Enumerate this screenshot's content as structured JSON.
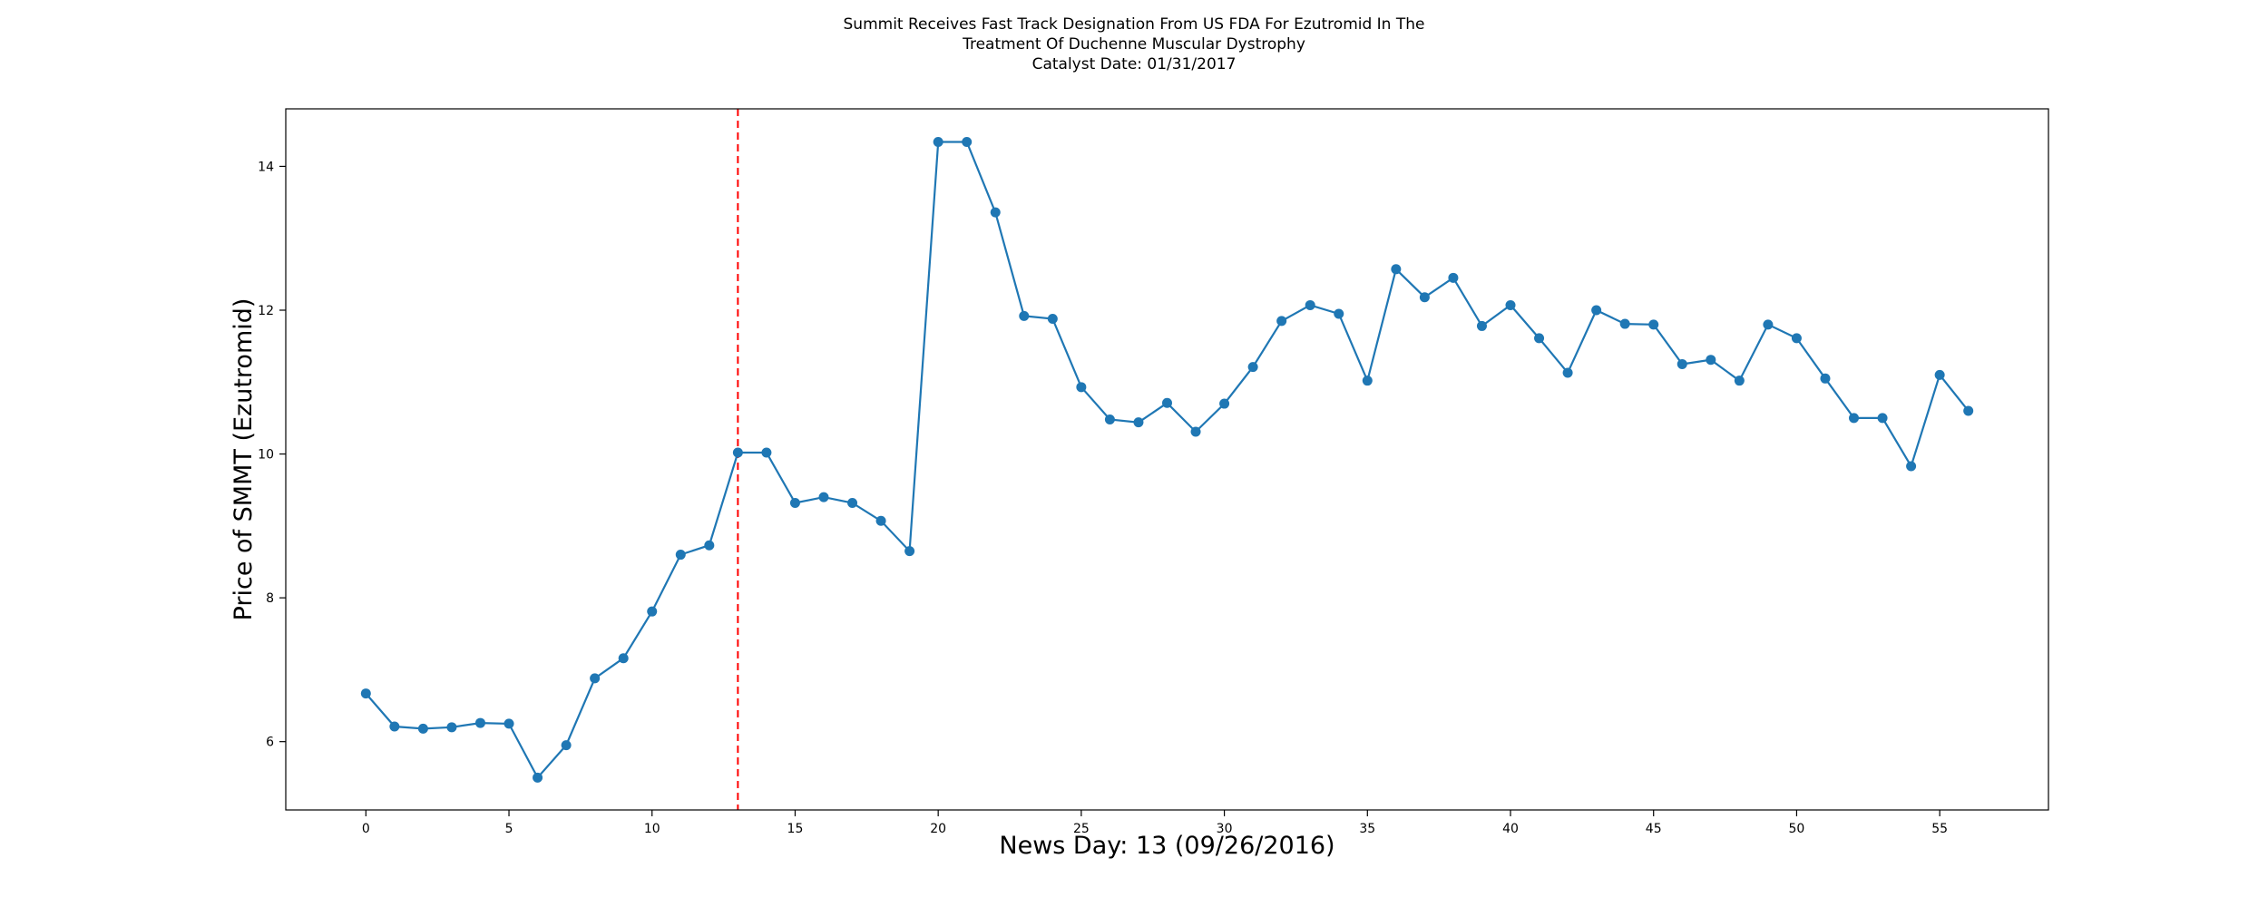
{
  "chart_data": {
    "type": "line",
    "title_lines": [
      "Summit Receives Fast Track Designation From US FDA For Ezutromid In The",
      "Treatment Of Duchenne Muscular Dystrophy",
      "Catalyst Date: 01/31/2017"
    ],
    "xlabel": "News Day: 13 (09/26/2016)",
    "ylabel": "Price of SMMT (Ezutromid)",
    "xlim": [
      -2.8,
      58.8
    ],
    "ylim": [
      5.05,
      14.8
    ],
    "xticks": [
      0,
      5,
      10,
      15,
      20,
      25,
      30,
      35,
      40,
      45,
      50,
      55
    ],
    "yticks": [
      6,
      8,
      10,
      12,
      14
    ],
    "event_line_x": 13,
    "grid": false,
    "colors": {
      "series": "#1f77b4",
      "event_line": "#ff0000"
    },
    "series": [
      {
        "x": [
          0,
          1,
          2,
          3,
          4,
          5,
          6,
          7,
          8,
          9,
          10,
          11,
          12,
          13,
          14,
          15,
          16,
          17,
          18,
          19,
          20,
          21,
          22,
          23,
          24,
          25,
          26,
          27,
          28,
          29,
          30,
          31,
          32,
          33,
          34,
          35,
          36,
          37,
          38,
          39,
          40,
          41,
          42,
          43,
          44,
          45,
          46,
          47,
          48,
          49,
          50,
          51,
          52,
          53,
          54,
          55,
          56
        ],
        "values": [
          6.67,
          6.21,
          6.18,
          6.2,
          6.26,
          6.25,
          5.5,
          5.95,
          6.88,
          7.16,
          7.81,
          8.6,
          8.73,
          10.02,
          10.02,
          9.32,
          9.4,
          9.32,
          9.07,
          8.65,
          14.34,
          14.34,
          13.36,
          11.92,
          11.88,
          10.93,
          10.48,
          10.44,
          10.71,
          10.31,
          10.7,
          11.21,
          11.85,
          12.07,
          11.95,
          11.02,
          12.57,
          12.18,
          12.45,
          11.78,
          12.07,
          11.61,
          11.13,
          12.0,
          11.81,
          11.8,
          11.25,
          11.31,
          11.02,
          11.8,
          11.61,
          11.05,
          10.5,
          10.5,
          9.83,
          11.1,
          10.6
        ]
      }
    ]
  }
}
